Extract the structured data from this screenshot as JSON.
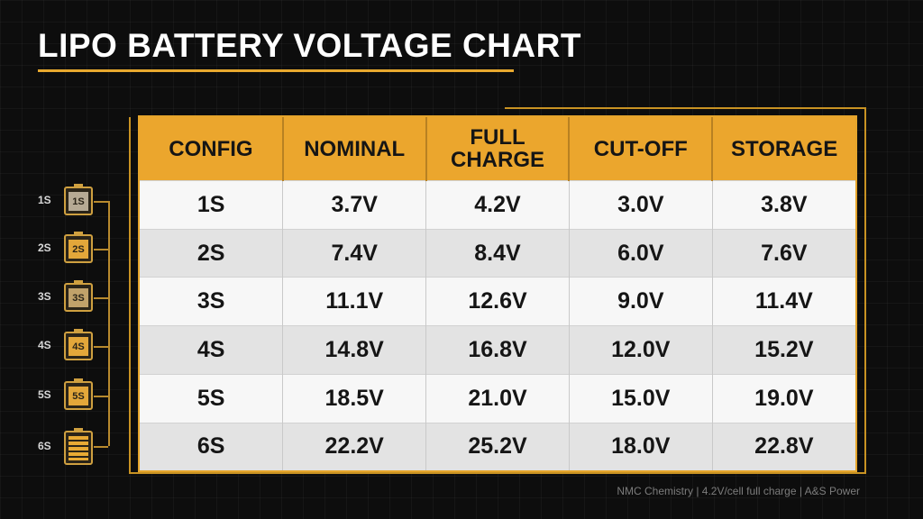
{
  "title": "LIPO BATTERY VOLTAGE CHART",
  "headers": [
    "CONFIG",
    "NOMINAL",
    "FULL CHARGE",
    "CUT-OFF",
    "STORAGE"
  ],
  "rows": [
    [
      "1S",
      "3.7V",
      "4.2V",
      "3.0V",
      "3.8V"
    ],
    [
      "2S",
      "7.4V",
      "8.4V",
      "6.0V",
      "7.6V"
    ],
    [
      "3S",
      "11.1V",
      "12.6V",
      "9.0V",
      "11.4V"
    ],
    [
      "4S",
      "14.8V",
      "16.8V",
      "12.0V",
      "15.2V"
    ],
    [
      "5S",
      "18.5V",
      "21.0V",
      "15.0V",
      "19.0V"
    ],
    [
      "6S",
      "22.2V",
      "25.2V",
      "18.0V",
      "22.8V"
    ]
  ],
  "cells": [
    {
      "label": "1S",
      "icon_text": "1S"
    },
    {
      "label": "2S",
      "icon_text": "2S"
    },
    {
      "label": "3S",
      "icon_text": "3S"
    },
    {
      "label": "4S",
      "icon_text": "4S"
    },
    {
      "label": "5S",
      "icon_text": "5S"
    },
    {
      "label": "6S",
      "icon_text": ""
    }
  ],
  "footer": "NMC Chemistry | 4.2V/cell full charge | A&S Power",
  "colors": {
    "accent": "#eba62d",
    "background": "#0d0d0d"
  }
}
